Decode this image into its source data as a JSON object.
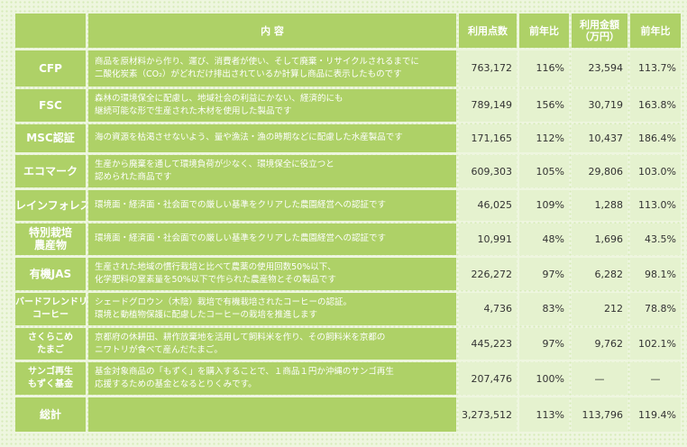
{
  "header": {
    "content": "内 容",
    "points": "利用点数",
    "yoy_points": "前年比",
    "amount": "利用金額\n（万円）",
    "yoy_amount": "前年比"
  },
  "rows": [
    {
      "label": "CFP",
      "desc": [
        "商品を原材料から作り、運び、消費者が使い、そして廃棄・リサイクルされるまでに",
        "二酸化炭素（CO₂）がどれだけ排出されているか計算し商品に表示したものです"
      ],
      "points": "763,172",
      "yoy_points": "116%",
      "amount": "23,594",
      "yoy_amount": "113.7%"
    },
    {
      "label": "FSC",
      "desc": [
        "森林の環境保全に配慮し、地域社会の利益にかない、経済的にも",
        "継続可能な形で生産された木材を使用した製品です"
      ],
      "points": "789,149",
      "yoy_points": "156%",
      "amount": "30,719",
      "yoy_amount": "163.8%"
    },
    {
      "label": "MSC認証",
      "desc": [
        "海の資源を枯渇させないよう、量や漁法・漁の時期などに配慮した水産製品です"
      ],
      "points": "171,165",
      "yoy_points": "112%",
      "amount": "10,437",
      "yoy_amount": "186.4%"
    },
    {
      "label": "エコマーク",
      "desc": [
        "生産から廃棄を通して環境負荷が少なく、環境保全に役立つと",
        "認められた商品です"
      ],
      "points": "609,303",
      "yoy_points": "105%",
      "amount": "29,806",
      "yoy_amount": "103.0%"
    },
    {
      "label": "レインフォレスト",
      "desc": [
        "環境面・経済面・社会面での厳しい基準をクリアした農園経営への認証です"
      ],
      "points": "46,025",
      "yoy_points": "109%",
      "amount": "1,288",
      "yoy_amount": "113.0%"
    },
    {
      "label": "特別栽培\n農産物",
      "desc": [
        "環境面・経済面・社会面での厳しい基準をクリアした農園経営への認証です"
      ],
      "points": "10,991",
      "yoy_points": "48%",
      "amount": "1,696",
      "yoy_amount": "43.5%"
    },
    {
      "label": "有機JAS",
      "desc": [
        "生産された地域の慣行栽培と比べて農薬の使用回数50%以下、",
        "化学肥料の窒素量を50%以下で作られた農産物とその製品です"
      ],
      "points": "226,272",
      "yoy_points": "97%",
      "amount": "6,282",
      "yoy_amount": "98.1%"
    },
    {
      "label": "バードフレンドリー\nコーヒー",
      "desc": [
        "シェードグロウン（木陰）栽培で有機栽培されたコーヒーの認証。",
        "環境と動植物保護に配慮したコーヒーの栽培を推進します"
      ],
      "points": "4,736",
      "yoy_points": "83%",
      "amount": "212",
      "yoy_amount": "78.8%"
    },
    {
      "label": "さくらこめ\nたまご",
      "desc": [
        "京都府の休耕田、耕作放棄地を活用して飼料米を作り、その飼料米を京都の",
        "ニワトリが食べて産んだたまご。"
      ],
      "points": "445,223",
      "yoy_points": "97%",
      "amount": "9,762",
      "yoy_amount": "102.1%"
    },
    {
      "label": "サンゴ再生\nもずく基金",
      "desc": [
        "基金対象商品の「もずく」を購入することで、１商品１円か沖縄のサンゴ再生",
        "応援するための基金となるとりくみです。"
      ],
      "points": "207,476",
      "yoy_points": "100%",
      "amount": "—",
      "yoy_amount": "—"
    }
  ],
  "total": {
    "label": "総計",
    "points": "3,273,512",
    "yoy_points": "113%",
    "amount": "113,796",
    "yoy_amount": "119.4%"
  },
  "colors": {
    "header_green": "#aed167",
    "value_cell": "#e5f2cf",
    "background": "#eef6df"
  }
}
